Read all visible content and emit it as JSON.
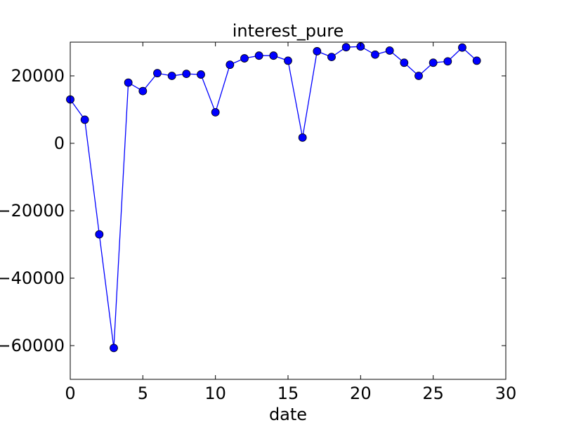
{
  "chart_data": {
    "type": "line",
    "title": "interest_pure",
    "xlabel": "date",
    "ylabel": "",
    "xlim": [
      0,
      30
    ],
    "ylim": [
      -70000,
      30000
    ],
    "xticks": [
      0,
      5,
      10,
      15,
      20,
      25,
      30
    ],
    "yticks": [
      20000,
      0,
      -20000,
      -40000,
      -60000
    ],
    "xtick_labels": [
      "0",
      "5",
      "10",
      "15",
      "20",
      "25",
      "30"
    ],
    "ytick_labels": [
      "20000",
      "0",
      "−20000",
      "−40000",
      "−60000"
    ],
    "grid": false,
    "legend": "none",
    "series": [
      {
        "color": "#0000ff",
        "marker": "circle",
        "x": [
          0,
          1,
          2,
          3,
          4,
          5,
          6,
          7,
          8,
          9,
          10,
          11,
          12,
          13,
          14,
          15,
          16,
          17,
          18,
          19,
          20,
          21,
          22,
          23,
          24,
          25,
          26,
          27,
          28
        ],
        "y": [
          13000,
          7000,
          -27000,
          -60700,
          18000,
          15500,
          20800,
          20000,
          20600,
          20400,
          9200,
          23300,
          25200,
          26000,
          26000,
          24500,
          1700,
          27300,
          25600,
          28500,
          28700,
          26300,
          27500,
          23900,
          20000,
          23900,
          24300,
          28400,
          24500
        ]
      }
    ]
  }
}
